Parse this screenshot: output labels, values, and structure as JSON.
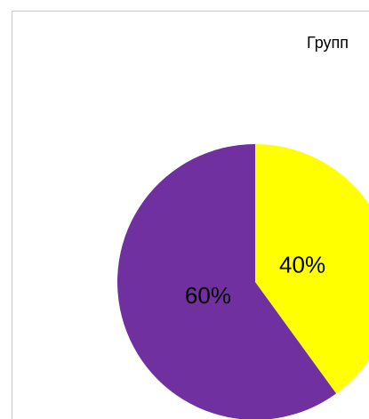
{
  "chart_data": {
    "type": "pie",
    "title": "Групп",
    "categories": [
      "",
      ""
    ],
    "values": [
      40,
      60
    ],
    "labels": [
      "40%",
      "60%"
    ],
    "colors": [
      "#ffff00",
      "#7030a0"
    ]
  }
}
